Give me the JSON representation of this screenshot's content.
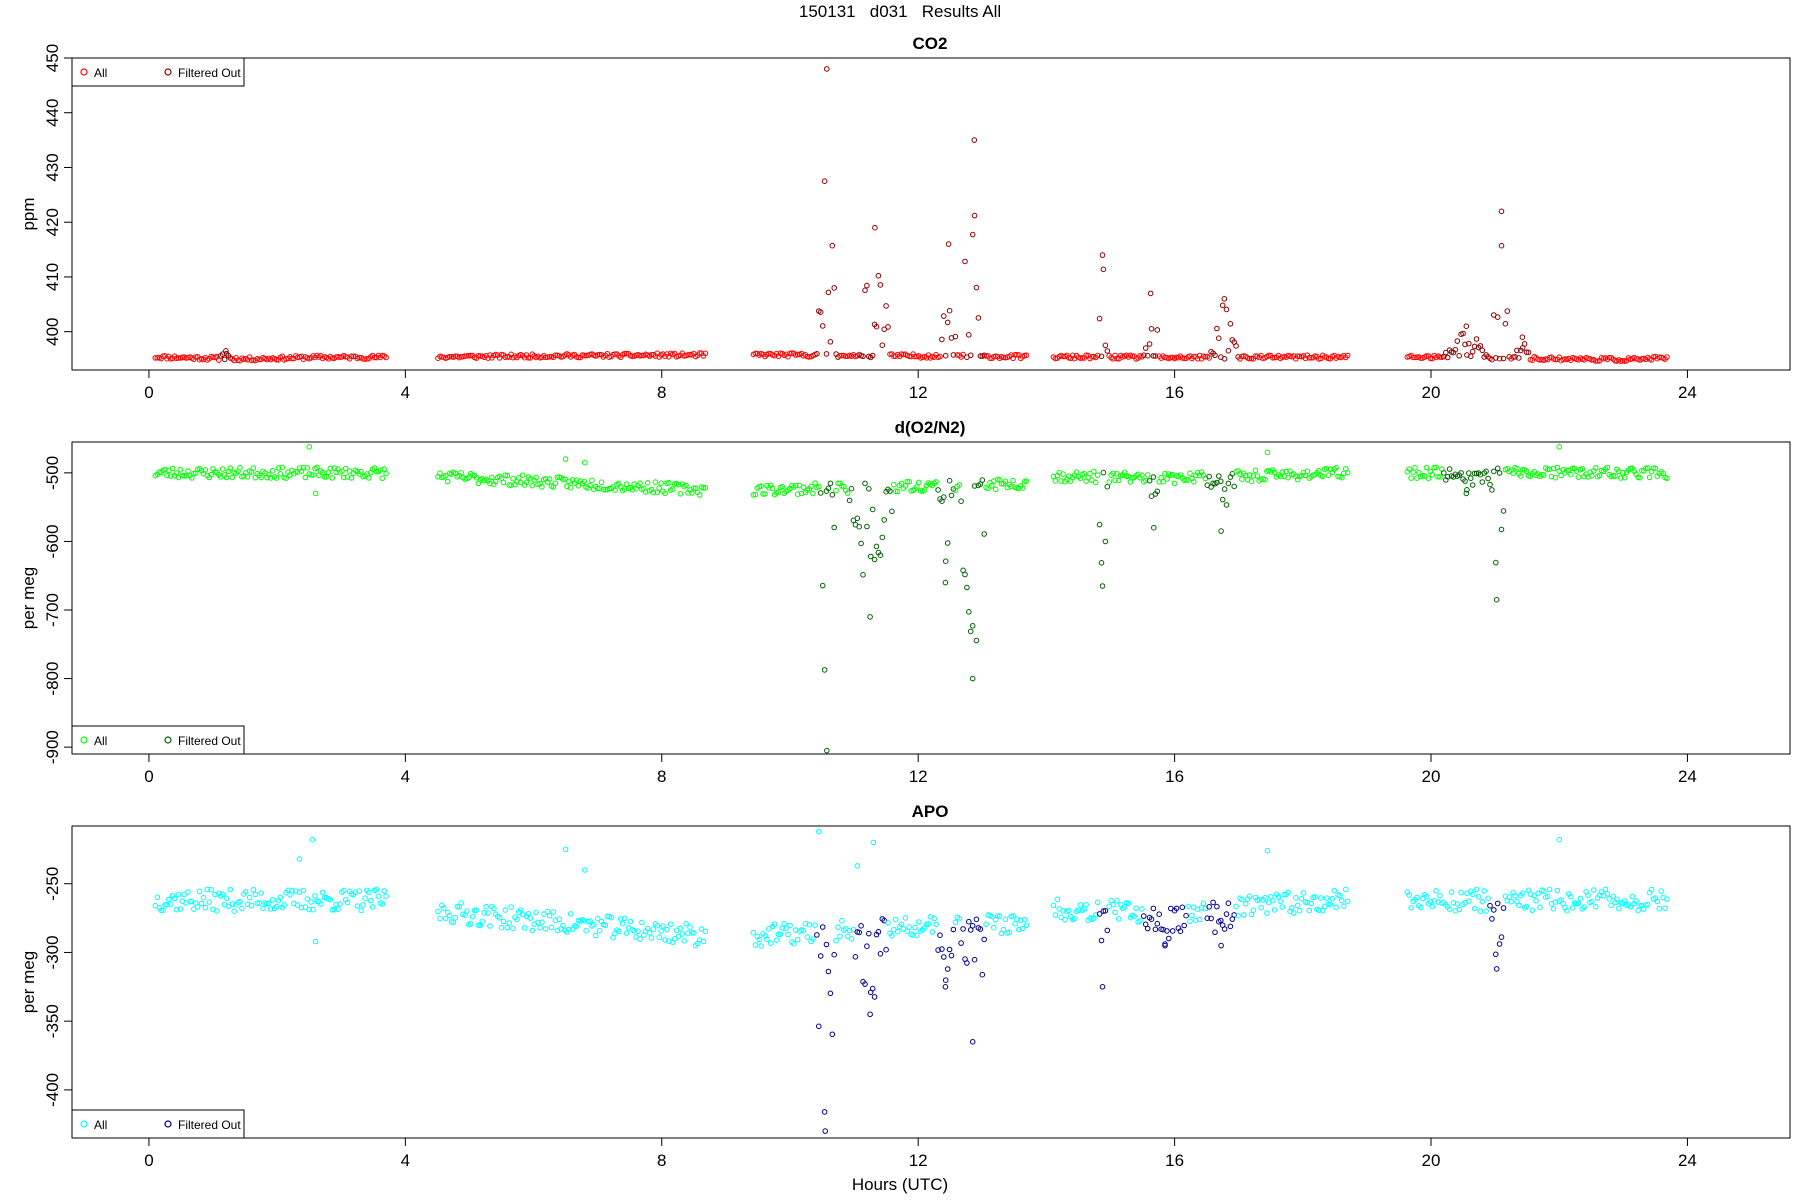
{
  "figure": {
    "title": "150131   d031   Results All",
    "xlabel": "Hours (UTC)"
  },
  "chart_data": [
    {
      "type": "scatter",
      "title": "CO2",
      "xlabel": "",
      "ylabel": "ppm",
      "xlim": [
        -1.2,
        25.6
      ],
      "ylim": [
        393,
        450
      ],
      "xticks": [
        0,
        4,
        8,
        12,
        16,
        20,
        24
      ],
      "yticks": [
        400,
        410,
        420,
        430,
        440,
        450
      ],
      "grid": false,
      "legend": {
        "placement": "top-left",
        "entries": [
          "All",
          "Filtered Out"
        ]
      },
      "colors": {
        "all": "#ff0000",
        "filtered": "#8b0000"
      },
      "gaps": [
        [
          3.7,
          4.5
        ],
        [
          8.7,
          9.4
        ],
        [
          13.7,
          14.1
        ],
        [
          18.7,
          19.6
        ]
      ],
      "baseline": {
        "breaks": [
          0.1,
          1.5,
          2.5,
          4.5,
          6.5,
          9.4,
          13.9,
          16.2,
          19.6,
          23.0,
          23.7
        ],
        "values": [
          395.4,
          395.0,
          395.3,
          395.4,
          395.6,
          395.8,
          395.4,
          395.3,
          395.4,
          394.9,
          395.2
        ]
      },
      "events": [
        {
          "t": [
            10.4,
            10.75
          ],
          "ext": 448,
          "spread": 0.3
        },
        {
          "t": [
            11.1,
            11.55
          ],
          "ext": 419,
          "spread": 0.15
        },
        {
          "t": [
            12.35,
            12.6
          ],
          "ext": 416,
          "spread": 0.2
        },
        {
          "t": [
            12.7,
            13.05
          ],
          "ext": 435,
          "spread": 0.25
        },
        {
          "t": [
            14.8,
            14.95
          ],
          "ext": 414,
          "spread": 0.1
        },
        {
          "t": [
            15.5,
            15.75
          ],
          "ext": 407,
          "spread": 0.1
        },
        {
          "t": [
            16.55,
            17.0
          ],
          "ext": 406,
          "spread": 0.2
        },
        {
          "t": [
            20.2,
            20.9
          ],
          "ext": 401,
          "spread": 0.1
        },
        {
          "t": [
            20.95,
            21.25
          ],
          "ext": 422,
          "spread": 0.2
        },
        {
          "t": [
            21.3,
            21.55
          ],
          "ext": 399,
          "spread": 0.1
        },
        {
          "t": [
            1.1,
            1.3
          ],
          "ext": 396.5,
          "spread": 0.1
        }
      ],
      "noise": 0.35,
      "outliers": [],
      "seed": 11
    },
    {
      "type": "scatter",
      "title": "d(O2/N2)",
      "xlabel": "",
      "ylabel": "per meg",
      "xlim": [
        -1.2,
        25.6
      ],
      "ylim": [
        -910,
        -455
      ],
      "xticks": [
        0,
        4,
        8,
        12,
        16,
        20,
        24
      ],
      "yticks": [
        -900,
        -800,
        -700,
        -600,
        -500
      ],
      "grid": false,
      "legend": {
        "placement": "bottom-left",
        "entries": [
          "All",
          "Filtered Out"
        ]
      },
      "colors": {
        "all": "#00ff00",
        "filtered": "#006400"
      },
      "gaps": [
        [
          3.7,
          4.5
        ],
        [
          8.7,
          9.4
        ],
        [
          13.7,
          14.1
        ],
        [
          18.7,
          19.6
        ]
      ],
      "baseline": {
        "breaks": [
          0.1,
          3.7,
          4.5,
          8.7,
          9.4,
          13.7,
          14.1,
          16.0,
          18.7,
          19.6,
          23.7
        ],
        "values": [
          -500,
          -500,
          -505,
          -525,
          -525,
          -515,
          -505,
          -508,
          -500,
          -500,
          -500
        ]
      },
      "events": [
        {
          "t": [
            10.45,
            10.7
          ],
          "ext": -905,
          "spread": 0.3
        },
        {
          "t": [
            10.9,
            11.6
          ],
          "ext": -710,
          "spread": 0.2
        },
        {
          "t": [
            12.3,
            12.55
          ],
          "ext": -660,
          "spread": 0.2
        },
        {
          "t": [
            12.65,
            13.05
          ],
          "ext": -800,
          "spread": 0.25
        },
        {
          "t": [
            14.8,
            14.95
          ],
          "ext": -665,
          "spread": 0.1
        },
        {
          "t": [
            15.6,
            15.75
          ],
          "ext": -580,
          "spread": 0.1
        },
        {
          "t": [
            16.5,
            16.95
          ],
          "ext": -585,
          "spread": 0.2
        },
        {
          "t": [
            20.2,
            20.9
          ],
          "ext": -530,
          "spread": 0.1
        },
        {
          "t": [
            20.9,
            21.15
          ],
          "ext": -685,
          "spread": 0.2
        }
      ],
      "noise": 8,
      "outliers": [
        [
          2.5,
          -462
        ],
        [
          6.5,
          -480
        ],
        [
          6.8,
          -485
        ],
        [
          17.45,
          -470
        ],
        [
          22.0,
          -462
        ],
        [
          2.6,
          -530
        ]
      ],
      "seed": 23
    },
    {
      "type": "scatter",
      "title": "APO",
      "xlabel": "Hours (UTC)",
      "ylabel": "per meg",
      "xlim": [
        -1.2,
        25.6
      ],
      "ylim": [
        -435,
        -208
      ],
      "xticks": [
        0,
        4,
        8,
        12,
        16,
        20,
        24
      ],
      "yticks": [
        -400,
        -350,
        -300,
        -250
      ],
      "grid": false,
      "legend": {
        "placement": "bottom-left",
        "entries": [
          "All",
          "Filtered Out"
        ]
      },
      "colors": {
        "all": "#00ffff",
        "filtered": "#00008b"
      },
      "gaps": [
        [
          3.7,
          4.5
        ],
        [
          8.7,
          9.4
        ],
        [
          13.7,
          14.1
        ],
        [
          18.7,
          19.6
        ]
      ],
      "baseline": {
        "breaks": [
          0.1,
          3.7,
          4.5,
          8.7,
          9.4,
          13.7,
          14.1,
          16.0,
          18.7,
          19.6,
          23.7
        ],
        "values": [
          -262,
          -262,
          -270,
          -288,
          -288,
          -278,
          -268,
          -272,
          -260,
          -262,
          -262
        ]
      },
      "events": [
        {
          "t": [
            10.4,
            10.7
          ],
          "ext": -430,
          "spread": 0.3
        },
        {
          "t": [
            11.0,
            11.5
          ],
          "ext": -345,
          "spread": 0.2
        },
        {
          "t": [
            12.3,
            12.55
          ],
          "ext": -325,
          "spread": 0.2
        },
        {
          "t": [
            12.65,
            13.05
          ],
          "ext": -365,
          "spread": 0.25
        },
        {
          "t": [
            14.8,
            14.95
          ],
          "ext": -325,
          "spread": 0.1
        },
        {
          "t": [
            15.5,
            16.2
          ],
          "ext": -295,
          "spread": 0.15
        },
        {
          "t": [
            16.5,
            16.95
          ],
          "ext": -295,
          "spread": 0.2
        },
        {
          "t": [
            20.9,
            21.15
          ],
          "ext": -312,
          "spread": 0.2
        }
      ],
      "noise": 8,
      "outliers": [
        [
          2.55,
          -218
        ],
        [
          6.5,
          -225
        ],
        [
          10.45,
          -212
        ],
        [
          11.3,
          -220
        ],
        [
          11.05,
          -237
        ],
        [
          2.35,
          -232
        ],
        [
          17.45,
          -226
        ],
        [
          22.0,
          -218
        ],
        [
          2.6,
          -292
        ],
        [
          6.8,
          -240
        ]
      ],
      "seed": 37
    }
  ]
}
